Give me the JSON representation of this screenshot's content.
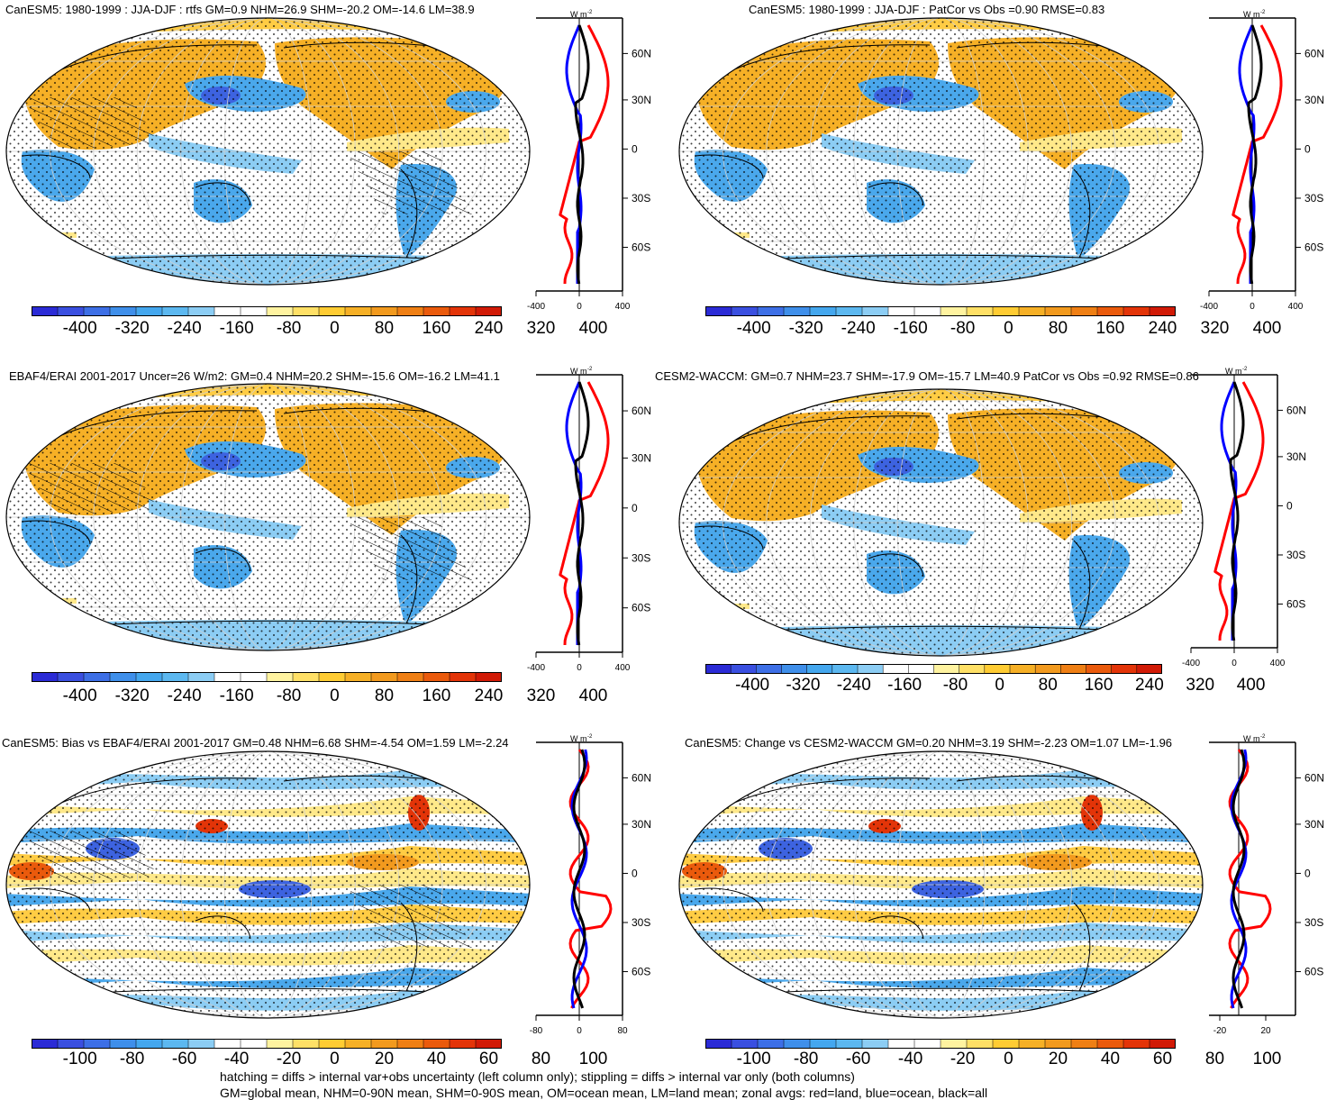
{
  "panels": [
    {
      "title": "CanESM5: 1980-1999 : JJA-DJF : rtfs GM=0.9 NHM=26.9 SHM=-20.2 OM=-14.6 LM=38.9",
      "colorbar_labels": [
        "-400",
        "-320",
        "-240",
        "-160",
        "-80",
        "0",
        "80",
        "160",
        "240",
        "320",
        "400"
      ],
      "zonal_unit": "W m",
      "zonal_unit_exp": "-2",
      "lat_labels": [
        "60N",
        "30N",
        "0",
        "30S",
        "60S"
      ],
      "zonal_x_labels": [
        "-400",
        "0",
        "400"
      ],
      "hatching": true,
      "variant": "clim"
    },
    {
      "title": "CanESM5: 1980-1999 : JJA-DJF : PatCor vs Obs =0.90 RMSE=0.83",
      "colorbar_labels": [
        "-400",
        "-320",
        "-240",
        "-160",
        "-80",
        "0",
        "80",
        "160",
        "240",
        "320",
        "400"
      ],
      "zonal_unit": "W m",
      "zonal_unit_exp": "-2",
      "lat_labels": [
        "60N",
        "30N",
        "0",
        "30S",
        "60S"
      ],
      "zonal_x_labels": [
        "-400",
        "0",
        "400"
      ],
      "hatching": false,
      "variant": "clim"
    },
    {
      "title": "EBAF4/ERAI 2001-2017 Uncer=26 W/m2: GM=0.4 NHM=20.2 SHM=-15.6 OM=-16.2 LM=41.1",
      "colorbar_labels": [
        "-400",
        "-320",
        "-240",
        "-160",
        "-80",
        "0",
        "80",
        "160",
        "240",
        "320",
        "400"
      ],
      "zonal_unit": "W m",
      "zonal_unit_exp": "-2",
      "lat_labels": [
        "60N",
        "30N",
        "0",
        "30S",
        "60S"
      ],
      "zonal_x_labels": [
        "-400",
        "0",
        "400"
      ],
      "hatching": true,
      "variant": "clim"
    },
    {
      "title": "CESM2-WACCM: GM=0.7 NHM=23.7 SHM=-17.9 OM=-15.7 LM=40.9 PatCor vs Obs =0.92 RMSE=0.86",
      "colorbar_labels": [
        "-400",
        "-320",
        "-240",
        "-160",
        "-80",
        "0",
        "80",
        "160",
        "240",
        "320",
        "400"
      ],
      "zonal_unit": "W m",
      "zonal_unit_exp": "-2",
      "lat_labels": [
        "60N",
        "30N",
        "0",
        "30S",
        "60S"
      ],
      "zonal_x_labels": [
        "-400",
        "0",
        "400"
      ],
      "hatching": false,
      "variant": "clim"
    },
    {
      "title": "CanESM5: Bias vs EBAF4/ERAI 2001-2017 GM=0.48 NHM=6.68 SHM=-4.54 OM=1.59 LM=-2.24",
      "colorbar_labels": [
        "-100",
        "-80",
        "-60",
        "-40",
        "-20",
        "0",
        "20",
        "40",
        "60",
        "80",
        "100"
      ],
      "zonal_unit": "W m",
      "zonal_unit_exp": "-2",
      "lat_labels": [
        "60N",
        "30N",
        "0",
        "30S",
        "60S"
      ],
      "zonal_x_labels": [
        "-80",
        "0",
        "80"
      ],
      "hatching": true,
      "variant": "diff"
    },
    {
      "title": "CanESM5: Change vs CESM2-WACCM GM=0.20 NHM=3.19 SHM=-2.23 OM=1.07 LM=-1.96",
      "colorbar_labels": [
        "-100",
        "-80",
        "-60",
        "-40",
        "-20",
        "0",
        "20",
        "40",
        "60",
        "80",
        "100"
      ],
      "zonal_unit": "W m",
      "zonal_unit_exp": "-2",
      "lat_labels": [
        "60N",
        "30N",
        "0",
        "30S",
        "60S"
      ],
      "zonal_x_labels": [
        "-20",
        "20"
      ],
      "hatching": false,
      "variant": "diff"
    }
  ],
  "colorbar_colors": [
    "#2b2bd6",
    "#3a4fe0",
    "#3d6fe6",
    "#3f8fea",
    "#44a7ee",
    "#5cb8f0",
    "#8ccdf4",
    "#ffffff",
    "#ffffff",
    "#fff3a0",
    "#ffe066",
    "#ffcc33",
    "#f6b026",
    "#f29a1e",
    "#ef7f14",
    "#ea5a0c",
    "#e33408",
    "#d11a06"
  ],
  "zonal_colors": {
    "land": "#ff0000",
    "ocean": "#0000ff",
    "all": "#000000"
  },
  "footer": {
    "line1": "hatching = diffs > internal var+obs uncertainty (left column only); stippling = diffs > internal var only (both columns)",
    "line2": "GM=global mean, NHM=0-90N mean, SHM=0-90S mean, OM=ocean mean, LM=land mean; zonal avgs: red=land, blue=ocean, black=all"
  }
}
